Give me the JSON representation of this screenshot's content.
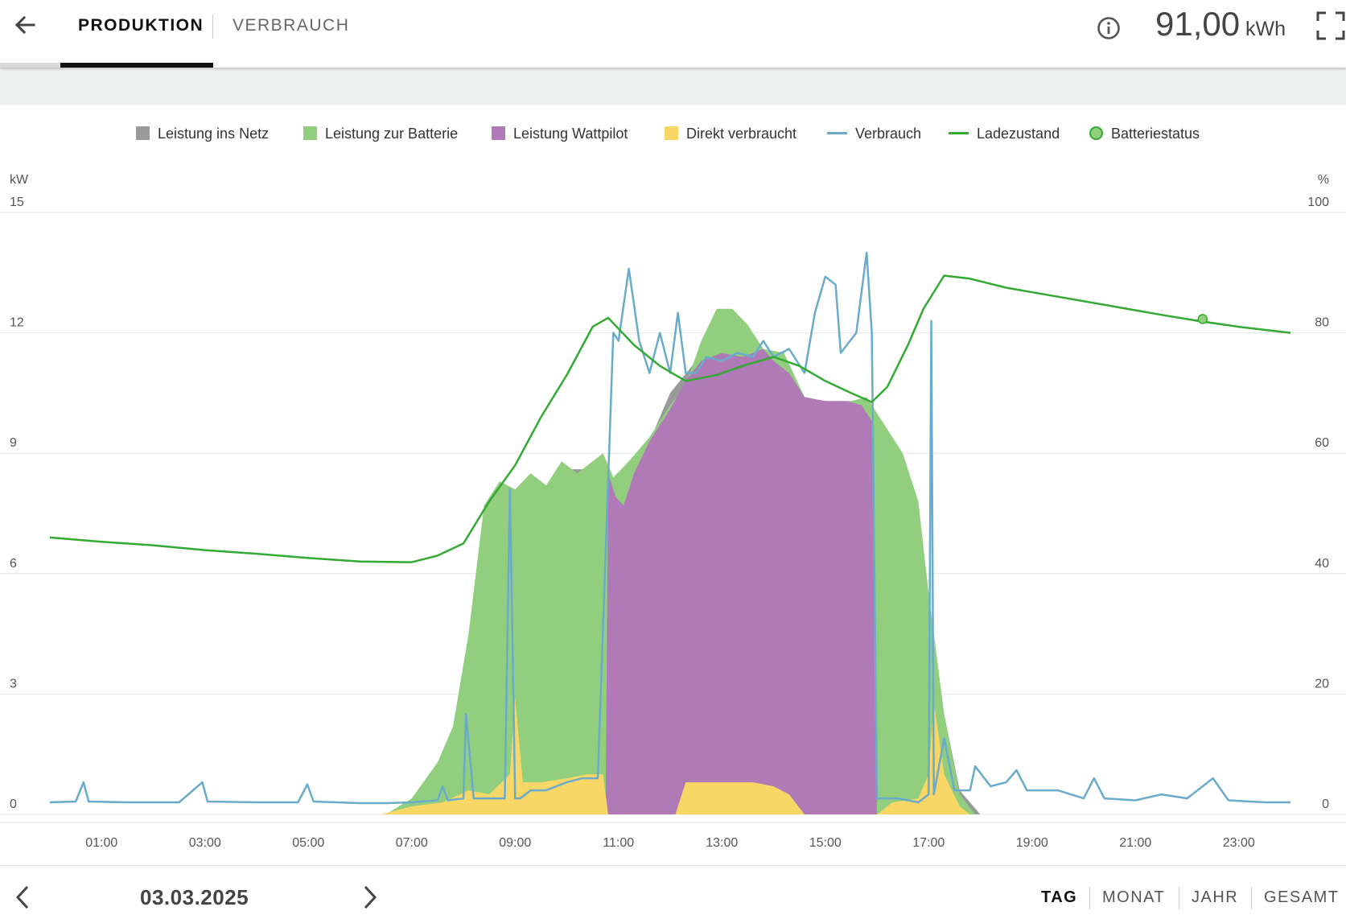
{
  "header": {
    "tabs": [
      {
        "label": "PRODUKTION",
        "active": true
      },
      {
        "label": "VERBRAUCH",
        "active": false
      }
    ],
    "total_value": "91,00",
    "total_unit": "kWh",
    "icons": [
      "back-arrow-icon",
      "info-icon",
      "fullscreen-icon"
    ]
  },
  "legend": [
    {
      "label": "Leistung ins Netz",
      "color": "#9a9a9a",
      "kind": "box"
    },
    {
      "label": "Leistung zur Batterie",
      "color": "#91cf7f",
      "kind": "box"
    },
    {
      "label": "Leistung Wattpilot",
      "color": "#b07ab6",
      "kind": "box"
    },
    {
      "label": "Direkt verbraucht",
      "color": "#f9d766",
      "kind": "box"
    },
    {
      "label": "Verbrauch",
      "color": "#6aabcc",
      "kind": "line"
    },
    {
      "label": "Ladezustand",
      "color": "#33aa33",
      "kind": "line"
    },
    {
      "label": "Batteriestatus",
      "color": "#91cf7f",
      "kind": "dot"
    }
  ],
  "chart_data": {
    "type": "area",
    "left_axis_unit": "kW",
    "right_axis_unit": "%",
    "y_ticks": [
      "0",
      "3",
      "6",
      "9",
      "12",
      "15"
    ],
    "y2_ticks": [
      "0",
      "20",
      "40",
      "60",
      "80",
      "100"
    ],
    "ylim": [
      0,
      15
    ],
    "y2lim": [
      0,
      100
    ],
    "x_ticks": [
      "01:00",
      "03:00",
      "05:00",
      "07:00",
      "09:00",
      "11:00",
      "13:00",
      "15:00",
      "17:00",
      "19:00",
      "21:00",
      "23:00"
    ],
    "xlim_hours": [
      0,
      24
    ],
    "grid": true,
    "series": [
      {
        "name": "Leistung ins Netz",
        "color": "#9a9a9a",
        "points": [
          [
            6.5,
            0
          ],
          [
            7.0,
            0.2
          ],
          [
            7.5,
            1.2
          ],
          [
            7.8,
            2.0
          ],
          [
            8.1,
            3.5
          ],
          [
            8.4,
            7.5
          ],
          [
            8.7,
            8.0
          ],
          [
            9.0,
            7.8
          ],
          [
            9.5,
            8.1
          ],
          [
            10.0,
            8.6
          ],
          [
            10.5,
            8.6
          ],
          [
            10.9,
            8.0
          ],
          [
            11.5,
            9.0
          ],
          [
            12.0,
            10.5
          ],
          [
            12.5,
            11.3
          ],
          [
            13.0,
            11.5
          ],
          [
            13.5,
            11.5
          ],
          [
            14.0,
            11.5
          ],
          [
            14.3,
            11.0
          ],
          [
            14.6,
            10.4
          ],
          [
            15.0,
            10.3
          ],
          [
            15.5,
            10.3
          ],
          [
            15.8,
            9.5
          ],
          [
            16.2,
            9.2
          ],
          [
            16.6,
            7.8
          ],
          [
            17.0,
            5.0
          ],
          [
            17.3,
            2.5
          ],
          [
            17.6,
            0.6
          ],
          [
            18.0,
            0
          ]
        ]
      },
      {
        "name": "Leistung zur Batterie",
        "color": "#91cf7f",
        "points": [
          [
            6.5,
            0
          ],
          [
            7.0,
            0.4
          ],
          [
            7.5,
            1.3
          ],
          [
            7.8,
            2.2
          ],
          [
            8.1,
            4.5
          ],
          [
            8.4,
            7.7
          ],
          [
            8.7,
            8.3
          ],
          [
            9.0,
            8.1
          ],
          [
            9.3,
            8.5
          ],
          [
            9.6,
            8.2
          ],
          [
            9.9,
            8.8
          ],
          [
            10.2,
            8.5
          ],
          [
            10.5,
            8.8
          ],
          [
            10.7,
            9.0
          ],
          [
            10.9,
            8.4
          ],
          [
            11.2,
            8.8
          ],
          [
            11.6,
            9.4
          ],
          [
            12.0,
            10.2
          ],
          [
            12.3,
            10.7
          ],
          [
            12.6,
            11.8
          ],
          [
            12.9,
            12.6
          ],
          [
            13.2,
            12.6
          ],
          [
            13.5,
            12.2
          ],
          [
            13.8,
            11.6
          ],
          [
            14.2,
            11.5
          ],
          [
            14.6,
            10.4
          ],
          [
            15.0,
            10.2
          ],
          [
            15.5,
            10.3
          ],
          [
            15.8,
            10.4
          ],
          [
            16.1,
            9.8
          ],
          [
            16.5,
            9.0
          ],
          [
            16.8,
            7.8
          ],
          [
            17.0,
            5.5
          ],
          [
            17.3,
            2.5
          ],
          [
            17.6,
            0.5
          ],
          [
            17.9,
            0
          ]
        ]
      },
      {
        "name": "Leistung Wattpilot",
        "color": "#b07ab6",
        "points": [
          [
            10.75,
            0
          ],
          [
            10.8,
            8.5
          ],
          [
            10.95,
            7.9
          ],
          [
            11.1,
            7.7
          ],
          [
            11.3,
            8.5
          ],
          [
            11.6,
            9.3
          ],
          [
            12.0,
            10.1
          ],
          [
            12.3,
            10.8
          ],
          [
            12.6,
            11.3
          ],
          [
            13.0,
            11.5
          ],
          [
            13.4,
            11.4
          ],
          [
            13.8,
            11.6
          ],
          [
            14.0,
            11.3
          ],
          [
            14.3,
            11.0
          ],
          [
            14.6,
            10.4
          ],
          [
            15.0,
            10.3
          ],
          [
            15.4,
            10.3
          ],
          [
            15.7,
            10.2
          ],
          [
            15.9,
            9.8
          ],
          [
            16.0,
            0
          ]
        ]
      },
      {
        "name": "Direkt verbraucht",
        "color": "#f9d766",
        "points": [
          [
            6.4,
            0
          ],
          [
            7.0,
            0.2
          ],
          [
            7.6,
            0.3
          ],
          [
            8.1,
            0.6
          ],
          [
            8.5,
            0.5
          ],
          [
            8.9,
            1.0
          ],
          [
            9.0,
            2.9
          ],
          [
            9.15,
            0.8
          ],
          [
            9.5,
            0.8
          ],
          [
            10.0,
            0.9
          ],
          [
            10.4,
            1.0
          ],
          [
            10.7,
            1.0
          ],
          [
            10.8,
            0
          ],
          [
            12.1,
            0
          ],
          [
            12.3,
            0.8
          ],
          [
            12.8,
            0.8
          ],
          [
            13.2,
            0.8
          ],
          [
            13.6,
            0.8
          ],
          [
            14.0,
            0.7
          ],
          [
            14.3,
            0.5
          ],
          [
            14.6,
            0
          ],
          [
            16.0,
            0
          ],
          [
            16.3,
            0.3
          ],
          [
            16.8,
            0.4
          ],
          [
            17.0,
            1.0
          ],
          [
            17.1,
            2.8
          ],
          [
            17.3,
            1.0
          ],
          [
            17.6,
            0.2
          ],
          [
            17.8,
            0
          ]
        ]
      }
    ],
    "lines": [
      {
        "name": "Verbrauch",
        "color": "#6aabcc",
        "points": [
          [
            0.0,
            0.3
          ],
          [
            0.5,
            0.32
          ],
          [
            0.65,
            0.8
          ],
          [
            0.75,
            0.32
          ],
          [
            1.5,
            0.3
          ],
          [
            2.5,
            0.3
          ],
          [
            2.95,
            0.8
          ],
          [
            3.05,
            0.32
          ],
          [
            4.0,
            0.3
          ],
          [
            4.8,
            0.3
          ],
          [
            4.98,
            0.75
          ],
          [
            5.1,
            0.32
          ],
          [
            6.0,
            0.28
          ],
          [
            6.5,
            0.28
          ],
          [
            7.0,
            0.3
          ],
          [
            7.5,
            0.35
          ],
          [
            7.6,
            0.7
          ],
          [
            7.7,
            0.35
          ],
          [
            8.0,
            0.4
          ],
          [
            8.05,
            2.5
          ],
          [
            8.2,
            0.4
          ],
          [
            8.6,
            0.4
          ],
          [
            8.8,
            0.4
          ],
          [
            8.9,
            8.1
          ],
          [
            9.0,
            0.4
          ],
          [
            9.1,
            0.4
          ],
          [
            9.3,
            0.6
          ],
          [
            9.6,
            0.6
          ],
          [
            10.0,
            0.8
          ],
          [
            10.3,
            0.9
          ],
          [
            10.6,
            0.9
          ],
          [
            10.9,
            12.0
          ],
          [
            11.0,
            11.8
          ],
          [
            11.2,
            13.6
          ],
          [
            11.4,
            11.8
          ],
          [
            11.6,
            11.0
          ],
          [
            11.8,
            12.0
          ],
          [
            12.0,
            11.0
          ],
          [
            12.15,
            12.5
          ],
          [
            12.3,
            11.0
          ],
          [
            12.5,
            11.0
          ],
          [
            12.7,
            11.4
          ],
          [
            13.0,
            11.3
          ],
          [
            13.3,
            11.5
          ],
          [
            13.6,
            11.4
          ],
          [
            13.8,
            11.8
          ],
          [
            14.0,
            11.4
          ],
          [
            14.3,
            11.6
          ],
          [
            14.6,
            11.0
          ],
          [
            14.8,
            12.5
          ],
          [
            15.0,
            13.4
          ],
          [
            15.2,
            13.2
          ],
          [
            15.3,
            11.5
          ],
          [
            15.6,
            12.0
          ],
          [
            15.8,
            14.0
          ],
          [
            15.9,
            12.0
          ],
          [
            16.0,
            0.4
          ],
          [
            16.4,
            0.4
          ],
          [
            16.8,
            0.3
          ],
          [
            17.0,
            0.5
          ],
          [
            17.05,
            12.3
          ],
          [
            17.1,
            0.5
          ],
          [
            17.3,
            1.9
          ],
          [
            17.5,
            0.6
          ],
          [
            17.8,
            0.6
          ],
          [
            17.9,
            1.2
          ],
          [
            18.2,
            0.7
          ],
          [
            18.5,
            0.8
          ],
          [
            18.7,
            1.1
          ],
          [
            18.9,
            0.6
          ],
          [
            19.5,
            0.6
          ],
          [
            20.0,
            0.4
          ],
          [
            20.2,
            0.9
          ],
          [
            20.4,
            0.4
          ],
          [
            21.0,
            0.35
          ],
          [
            21.5,
            0.5
          ],
          [
            22.0,
            0.4
          ],
          [
            22.5,
            0.9
          ],
          [
            22.8,
            0.35
          ],
          [
            23.5,
            0.3
          ],
          [
            24.0,
            0.3
          ]
        ]
      },
      {
        "name": "Ladezustand",
        "color": "#33aa33",
        "axis": "right",
        "points": [
          [
            0.0,
            46.0
          ],
          [
            1.0,
            45.3
          ],
          [
            2.0,
            44.7
          ],
          [
            3.0,
            43.9
          ],
          [
            4.0,
            43.3
          ],
          [
            5.0,
            42.6
          ],
          [
            6.0,
            42.0
          ],
          [
            7.0,
            41.9
          ],
          [
            7.5,
            43.0
          ],
          [
            8.0,
            45.0
          ],
          [
            8.5,
            52.0
          ],
          [
            9.0,
            58.0
          ],
          [
            9.5,
            66.0
          ],
          [
            10.0,
            73.0
          ],
          [
            10.5,
            81.0
          ],
          [
            10.8,
            82.5
          ],
          [
            11.3,
            78.0
          ],
          [
            11.8,
            74.5
          ],
          [
            12.3,
            72.0
          ],
          [
            12.9,
            73.0
          ],
          [
            13.4,
            74.5
          ],
          [
            14.0,
            76.0
          ],
          [
            14.5,
            74.5
          ],
          [
            15.0,
            72.0
          ],
          [
            15.5,
            70.0
          ],
          [
            15.9,
            68.5
          ],
          [
            16.2,
            71.0
          ],
          [
            16.6,
            78.0
          ],
          [
            16.9,
            84.0
          ],
          [
            17.3,
            89.5
          ],
          [
            17.8,
            89.0
          ],
          [
            18.5,
            87.5
          ],
          [
            19.5,
            86.0
          ],
          [
            20.5,
            84.5
          ],
          [
            21.5,
            83.0
          ],
          [
            22.2,
            82.0
          ],
          [
            23.0,
            81.0
          ],
          [
            24.0,
            80.0
          ]
        ]
      }
    ],
    "markers": [
      {
        "name": "Batteriestatus",
        "x": 22.3,
        "y2": 82.3,
        "color": "#91cf7f"
      }
    ]
  },
  "footer": {
    "date": "03.03.2025",
    "periods": [
      {
        "label": "TAG",
        "active": true
      },
      {
        "label": "MONAT",
        "active": false
      },
      {
        "label": "JAHR",
        "active": false
      },
      {
        "label": "GESAMT",
        "active": false
      }
    ]
  }
}
